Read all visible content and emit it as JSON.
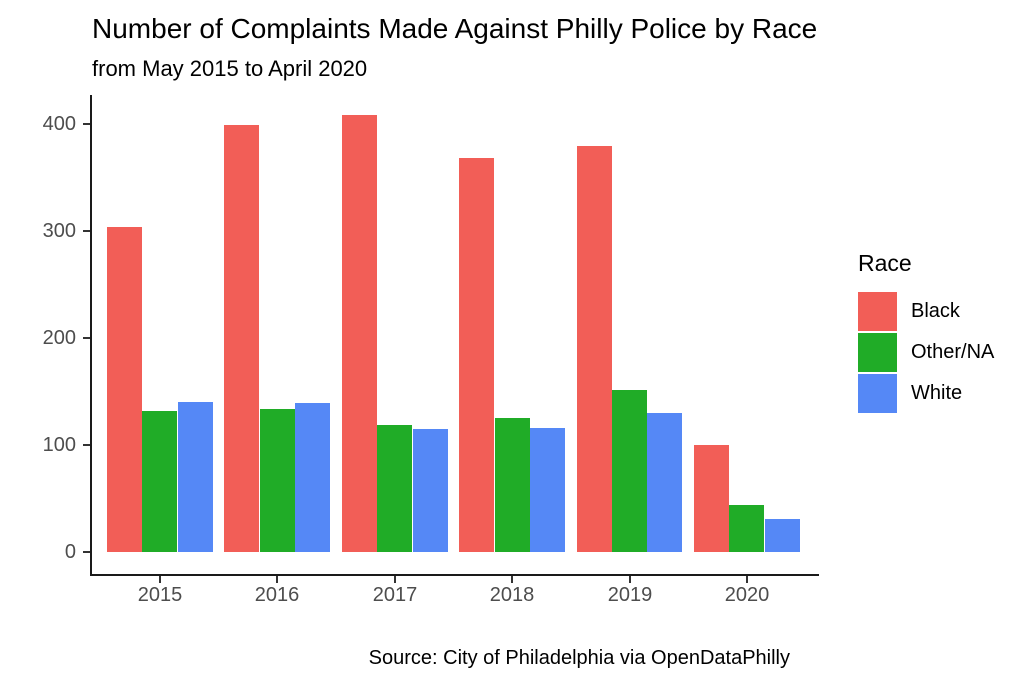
{
  "chart_data": {
    "type": "bar",
    "title": "Number of Complaints Made Against Philly Police by Race",
    "subtitle": "from May 2015 to April 2020",
    "caption": "Source: City of Philadelphia via OpenDataPhilly",
    "legend_title": "Race",
    "legend_position": "right",
    "grid": false,
    "xlabel": "",
    "ylabel": "",
    "categories": [
      "2015",
      "2016",
      "2017",
      "2018",
      "2019",
      "2020"
    ],
    "series": [
      {
        "name": "Black",
        "color": "#F25E57",
        "values": [
          304,
          399,
          408,
          368,
          379,
          100
        ]
      },
      {
        "name": "Other/NA",
        "color": "#20AC27",
        "values": [
          132,
          134,
          119,
          125,
          151,
          44
        ]
      },
      {
        "name": "White",
        "color": "#5588F6",
        "values": [
          140,
          139,
          115,
          116,
          130,
          31
        ]
      }
    ],
    "yticks": [
      0,
      100,
      200,
      300,
      400
    ],
    "ylim": [
      0,
      430
    ],
    "axis_color": "#1a1a1a",
    "tick_label_color": "#4d4d4d"
  }
}
